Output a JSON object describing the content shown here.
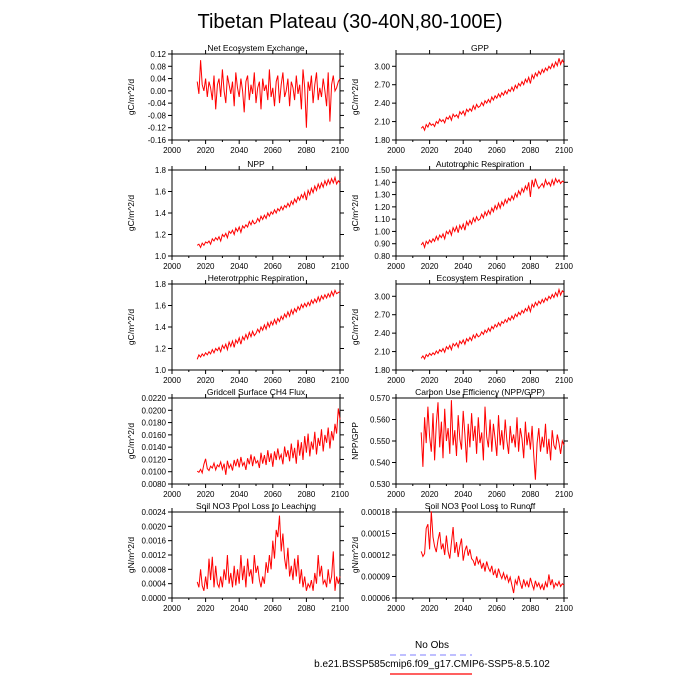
{
  "page_title": "Tibetan Plateau (30-40N,80-100E)",
  "legend": {
    "obs_label": "No Obs",
    "obs_color": "#9999ff",
    "model_label": "b.e21.BSSP585cmip6.f09_g17.CMIP6-SSP5-8.5.102",
    "model_color": "#ff0000"
  },
  "chart_data": [
    {
      "type": "line",
      "title": "Net Ecosystem Exchange",
      "ylabel": "gC/m^2/d",
      "xlim": [
        2000,
        2100
      ],
      "ylim": [
        -0.16,
        0.12
      ],
      "xticks": [
        "2000",
        "2020",
        "2040",
        "2060",
        "2080",
        "2100"
      ],
      "yticks": [
        "-0.16",
        "-0.12",
        "-0.08",
        "-0.04",
        "0.00",
        "0.04",
        "0.08",
        "0.12"
      ],
      "x_start": 2015,
      "values": [
        0.03,
        -0.01,
        0.1,
        0.02,
        0.0,
        0.04,
        -0.02,
        0.03,
        0.01,
        -0.03,
        0.05,
        -0.06,
        0.02,
        0.04,
        -0.02,
        0.07,
        0.0,
        -0.04,
        0.05,
        0.02,
        -0.01,
        0.03,
        -0.05,
        0.06,
        0.01,
        -0.02,
        0.04,
        0.0,
        -0.07,
        0.03,
        0.05,
        -0.03,
        0.02,
        -0.01,
        0.06,
        -0.04,
        0.01,
        0.03,
        -0.06,
        0.04,
        0.0,
        0.02,
        -0.03,
        0.07,
        -0.02,
        0.01,
        -0.05,
        0.03,
        0.05,
        -0.04,
        0.02,
        0.06,
        -0.02,
        0.0,
        0.04,
        -0.05,
        0.03,
        0.01,
        -0.03,
        0.05,
        -0.01,
        0.02,
        -0.06,
        0.07,
        0.01,
        -0.12,
        0.03,
        0.0,
        0.05,
        -0.04,
        0.02,
        0.06,
        -0.03,
        0.01,
        -0.02,
        0.04,
        0.0,
        -0.05,
        0.06,
        -0.1,
        0.02,
        0.05,
        0.0,
        0.01,
        0.03,
        0.04
      ]
    },
    {
      "type": "line",
      "title": "GPP",
      "ylabel": "gC/m^2/d",
      "xlim": [
        2000,
        2100
      ],
      "ylim": [
        1.8,
        3.2
      ],
      "xticks": [
        "2000",
        "2020",
        "2040",
        "2060",
        "2080",
        "2100"
      ],
      "yticks": [
        "1.80",
        "2.10",
        "2.40",
        "2.70",
        "3.00"
      ],
      "x_start": 2015,
      "values": [
        1.99,
        2.02,
        1.96,
        2.05,
        2.01,
        2.08,
        2.04,
        2.06,
        2.02,
        2.1,
        2.07,
        2.14,
        2.1,
        2.13,
        2.08,
        2.17,
        2.14,
        2.19,
        2.12,
        2.22,
        2.18,
        2.21,
        2.16,
        2.26,
        2.22,
        2.27,
        2.2,
        2.3,
        2.26,
        2.31,
        2.27,
        2.36,
        2.3,
        2.38,
        2.33,
        2.35,
        2.41,
        2.36,
        2.44,
        2.4,
        2.46,
        2.41,
        2.5,
        2.45,
        2.52,
        2.48,
        2.55,
        2.5,
        2.57,
        2.53,
        2.6,
        2.55,
        2.62,
        2.59,
        2.66,
        2.6,
        2.69,
        2.64,
        2.72,
        2.68,
        2.75,
        2.7,
        2.79,
        2.74,
        2.82,
        2.72,
        2.86,
        2.8,
        2.89,
        2.84,
        2.92,
        2.87,
        2.95,
        2.9,
        2.97,
        2.93,
        3.0,
        2.96,
        3.04,
        2.98,
        3.07,
        3.01,
        3.13,
        3.03,
        3.1,
        3.05
      ]
    },
    {
      "type": "line",
      "title": "NPP",
      "ylabel": "gC/m^2/d",
      "xlim": [
        2000,
        2100
      ],
      "ylim": [
        1.0,
        1.8
      ],
      "xticks": [
        "2000",
        "2020",
        "2040",
        "2060",
        "2080",
        "2100"
      ],
      "yticks": [
        "1.0",
        "1.2",
        "1.4",
        "1.6",
        "1.8"
      ],
      "x_start": 2015,
      "values": [
        1.1,
        1.11,
        1.08,
        1.12,
        1.1,
        1.13,
        1.12,
        1.14,
        1.11,
        1.16,
        1.14,
        1.17,
        1.15,
        1.18,
        1.14,
        1.2,
        1.18,
        1.21,
        1.17,
        1.23,
        1.21,
        1.24,
        1.2,
        1.26,
        1.23,
        1.27,
        1.22,
        1.28,
        1.26,
        1.29,
        1.27,
        1.32,
        1.29,
        1.33,
        1.3,
        1.31,
        1.35,
        1.32,
        1.37,
        1.34,
        1.38,
        1.35,
        1.4,
        1.37,
        1.41,
        1.39,
        1.43,
        1.4,
        1.44,
        1.42,
        1.46,
        1.43,
        1.47,
        1.45,
        1.49,
        1.46,
        1.51,
        1.48,
        1.53,
        1.5,
        1.55,
        1.52,
        1.57,
        1.54,
        1.59,
        1.52,
        1.61,
        1.57,
        1.63,
        1.59,
        1.65,
        1.61,
        1.67,
        1.63,
        1.68,
        1.64,
        1.7,
        1.66,
        1.71,
        1.67,
        1.72,
        1.68,
        1.73,
        1.67,
        1.7,
        1.68
      ]
    },
    {
      "type": "line",
      "title": "Autotrophic Respiration",
      "ylabel": "gC/m^2/d",
      "xlim": [
        2000,
        2100
      ],
      "ylim": [
        0.8,
        1.5
      ],
      "xticks": [
        "2000",
        "2020",
        "2040",
        "2060",
        "2080",
        "2100"
      ],
      "yticks": [
        "0.80",
        "0.90",
        "1.00",
        "1.10",
        "1.20",
        "1.30",
        "1.40",
        "1.50"
      ],
      "x_start": 2015,
      "values": [
        0.89,
        0.91,
        0.87,
        0.92,
        0.9,
        0.93,
        0.91,
        0.94,
        0.92,
        0.96,
        0.93,
        0.97,
        0.95,
        0.98,
        0.94,
        1.0,
        0.98,
        1.01,
        0.97,
        1.03,
        1.0,
        1.04,
        0.99,
        1.05,
        1.02,
        1.06,
        1.01,
        1.08,
        1.05,
        1.09,
        1.06,
        1.11,
        1.08,
        1.12,
        1.09,
        1.1,
        1.14,
        1.11,
        1.16,
        1.13,
        1.17,
        1.14,
        1.19,
        1.16,
        1.21,
        1.18,
        1.23,
        1.19,
        1.24,
        1.21,
        1.26,
        1.23,
        1.27,
        1.25,
        1.29,
        1.26,
        1.31,
        1.28,
        1.33,
        1.3,
        1.35,
        1.32,
        1.37,
        1.34,
        1.4,
        1.28,
        1.42,
        1.36,
        1.43,
        1.38,
        1.35,
        1.37,
        1.39,
        1.36,
        1.42,
        1.38,
        1.4,
        1.37,
        1.42,
        1.38,
        1.43,
        1.4,
        1.42,
        1.39,
        1.41,
        1.4
      ]
    },
    {
      "type": "line",
      "title": "Heterotrophic Respiration",
      "ylabel": "gC/m^2/d",
      "xlim": [
        2000,
        2100
      ],
      "ylim": [
        1.0,
        1.8
      ],
      "xticks": [
        "2000",
        "2020",
        "2040",
        "2060",
        "2080",
        "2100"
      ],
      "yticks": [
        "1.0",
        "1.2",
        "1.4",
        "1.6",
        "1.8"
      ],
      "x_start": 2015,
      "values": [
        1.1,
        1.14,
        1.12,
        1.15,
        1.13,
        1.16,
        1.14,
        1.17,
        1.15,
        1.19,
        1.16,
        1.2,
        1.18,
        1.21,
        1.17,
        1.23,
        1.2,
        1.24,
        1.19,
        1.26,
        1.22,
        1.27,
        1.21,
        1.28,
        1.25,
        1.3,
        1.24,
        1.31,
        1.28,
        1.33,
        1.29,
        1.35,
        1.31,
        1.36,
        1.32,
        1.34,
        1.38,
        1.35,
        1.4,
        1.37,
        1.42,
        1.38,
        1.44,
        1.4,
        1.45,
        1.42,
        1.47,
        1.43,
        1.48,
        1.45,
        1.5,
        1.47,
        1.52,
        1.49,
        1.54,
        1.5,
        1.56,
        1.52,
        1.57,
        1.54,
        1.59,
        1.56,
        1.61,
        1.58,
        1.62,
        1.59,
        1.63,
        1.6,
        1.65,
        1.62,
        1.66,
        1.63,
        1.68,
        1.64,
        1.69,
        1.66,
        1.7,
        1.67,
        1.71,
        1.68,
        1.73,
        1.69,
        1.74,
        1.71,
        1.72,
        1.73
      ]
    },
    {
      "type": "line",
      "title": "Ecosystem Respiration",
      "ylabel": "gC/m^2/d",
      "xlim": [
        2000,
        2100
      ],
      "ylim": [
        1.8,
        3.2
      ],
      "xticks": [
        "2000",
        "2020",
        "2040",
        "2060",
        "2080",
        "2100"
      ],
      "yticks": [
        "1.80",
        "2.10",
        "2.40",
        "2.70",
        "3.00"
      ],
      "x_start": 2015,
      "values": [
        1.99,
        2.03,
        1.98,
        2.05,
        2.02,
        2.07,
        2.04,
        2.08,
        2.05,
        2.11,
        2.07,
        2.13,
        2.1,
        2.15,
        2.09,
        2.18,
        2.14,
        2.2,
        2.13,
        2.23,
        2.19,
        2.24,
        2.17,
        2.27,
        2.23,
        2.29,
        2.22,
        2.31,
        2.27,
        2.33,
        2.28,
        2.37,
        2.32,
        2.39,
        2.34,
        2.36,
        2.42,
        2.38,
        2.45,
        2.41,
        2.48,
        2.43,
        2.51,
        2.47,
        2.54,
        2.5,
        2.57,
        2.52,
        2.59,
        2.56,
        2.62,
        2.58,
        2.65,
        2.61,
        2.68,
        2.63,
        2.71,
        2.67,
        2.74,
        2.7,
        2.77,
        2.73,
        2.8,
        2.76,
        2.84,
        2.75,
        2.87,
        2.82,
        2.9,
        2.85,
        2.92,
        2.88,
        2.95,
        2.9,
        2.97,
        2.93,
        3.0,
        2.96,
        3.03,
        2.98,
        3.06,
        3.0,
        3.11,
        3.02,
        3.09,
        3.06
      ]
    },
    {
      "type": "line",
      "title": "Gridcell Surface CH4 Flux",
      "ylabel": "gC/m^2/d",
      "xlim": [
        2000,
        2100
      ],
      "ylim": [
        0.008,
        0.022
      ],
      "xticks": [
        "2000",
        "2020",
        "2040",
        "2060",
        "2080",
        "2100"
      ],
      "yticks": [
        "0.0080",
        "0.0100",
        "0.0120",
        "0.0140",
        "0.0160",
        "0.0180",
        "0.0200",
        "0.0220"
      ],
      "x_start": 2015,
      "values": [
        0.0101,
        0.0099,
        0.0104,
        0.0098,
        0.0112,
        0.0121,
        0.0105,
        0.0102,
        0.0109,
        0.0106,
        0.0114,
        0.0103,
        0.0111,
        0.0108,
        0.0116,
        0.0104,
        0.0113,
        0.0095,
        0.0118,
        0.0106,
        0.0112,
        0.0102,
        0.0119,
        0.0109,
        0.0121,
        0.0107,
        0.0124,
        0.011,
        0.0115,
        0.0103,
        0.0122,
        0.0112,
        0.0128,
        0.0109,
        0.0125,
        0.0114,
        0.0118,
        0.0106,
        0.0131,
        0.0113,
        0.0127,
        0.0111,
        0.0135,
        0.0116,
        0.013,
        0.0108,
        0.0133,
        0.0119,
        0.0138,
        0.0121,
        0.0128,
        0.0112,
        0.0141,
        0.0124,
        0.0135,
        0.0117,
        0.0146,
        0.0122,
        0.0139,
        0.0113,
        0.0152,
        0.0126,
        0.0148,
        0.0119,
        0.0158,
        0.0131,
        0.0162,
        0.0125,
        0.0149,
        0.0136,
        0.0165,
        0.0128,
        0.0155,
        0.0142,
        0.0169,
        0.0133,
        0.016,
        0.0147,
        0.0172,
        0.0138,
        0.0166,
        0.0151,
        0.0178,
        0.0162,
        0.0203,
        0.0185
      ]
    },
    {
      "type": "line",
      "title": "Carbon Use Efficiency (NPP/GPP)",
      "ylabel": "NPP/GPP",
      "xlim": [
        2000,
        2100
      ],
      "ylim": [
        0.53,
        0.57
      ],
      "xticks": [
        "2000",
        "2020",
        "2040",
        "2060",
        "2080",
        "2100"
      ],
      "yticks": [
        "0.530",
        "0.540",
        "0.550",
        "0.560",
        "0.570"
      ],
      "x_start": 2015,
      "values": [
        0.554,
        0.538,
        0.561,
        0.549,
        0.566,
        0.552,
        0.545,
        0.563,
        0.541,
        0.558,
        0.568,
        0.547,
        0.559,
        0.542,
        0.565,
        0.55,
        0.556,
        0.544,
        0.569,
        0.548,
        0.555,
        0.543,
        0.562,
        0.551,
        0.546,
        0.564,
        0.553,
        0.54,
        0.558,
        0.547,
        0.563,
        0.55,
        0.557,
        0.544,
        0.561,
        0.549,
        0.554,
        0.541,
        0.566,
        0.552,
        0.547,
        0.56,
        0.545,
        0.558,
        0.551,
        0.543,
        0.562,
        0.548,
        0.555,
        0.546,
        0.56,
        0.55,
        0.544,
        0.557,
        0.549,
        0.553,
        0.547,
        0.561,
        0.545,
        0.556,
        0.551,
        0.542,
        0.559,
        0.548,
        0.554,
        0.546,
        0.557,
        0.543,
        0.532,
        0.549,
        0.556,
        0.545,
        0.552,
        0.547,
        0.558,
        0.544,
        0.551,
        0.541,
        0.555,
        0.548,
        0.546,
        0.553,
        0.549,
        0.544,
        0.55,
        0.548
      ]
    },
    {
      "type": "line",
      "title": "Soil NO3 Pool Loss to Leaching",
      "ylabel": "gN/m^2/d",
      "xlim": [
        2000,
        2100
      ],
      "ylim": [
        0.0,
        0.0024
      ],
      "xticks": [
        "2000",
        "2020",
        "2040",
        "2060",
        "2080",
        "2100"
      ],
      "yticks": [
        "0.0000",
        "0.0004",
        "0.0008",
        "0.0012",
        "0.0016",
        "0.0020",
        "0.0024"
      ],
      "x_start": 2015,
      "values": [
        0.00045,
        0.0003,
        0.0008,
        0.00035,
        0.0002,
        0.0006,
        0.00025,
        0.0011,
        0.0005,
        0.00115,
        0.0003,
        0.0009,
        0.0004,
        0.0003,
        0.0006,
        0.0003,
        0.0008,
        0.0005,
        0.0012,
        0.0004,
        0.0007,
        0.0003,
        0.0009,
        0.00035,
        0.0008,
        0.0004,
        0.0012,
        0.0005,
        0.0009,
        0.0003,
        0.0011,
        0.0006,
        0.0008,
        0.0004,
        0.0012,
        0.0007,
        0.0009,
        0.0005,
        0.0003,
        0.0006,
        0.0004,
        0.001,
        0.0007,
        0.0012,
        0.0008,
        0.0016,
        0.0011,
        0.0019,
        0.0017,
        0.0023,
        0.0013,
        0.0018,
        0.0011,
        0.0008,
        0.0014,
        0.0006,
        0.0009,
        0.0005,
        0.0011,
        0.0006,
        0.0012,
        0.0004,
        0.0008,
        0.0003,
        0.0006,
        0.0002,
        0.0004,
        0.0003,
        0.0005,
        0.0002,
        0.0007,
        0.0004,
        0.0012,
        0.0006,
        0.0009,
        0.0004,
        0.0005,
        0.0003,
        0.0008,
        0.0004,
        0.0006,
        0.0013,
        0.0002,
        0.0006,
        0.0004,
        0.0006
      ]
    },
    {
      "type": "line",
      "title": "Soil NO3 Pool Loss to Runoff",
      "ylabel": "gN/m^2/d",
      "xlim": [
        2000,
        2100
      ],
      "ylim": [
        6e-05,
        0.00018
      ],
      "xticks": [
        "2000",
        "2020",
        "2040",
        "2060",
        "2080",
        "2100"
      ],
      "yticks": [
        "0.00006",
        "0.00009",
        "0.00012",
        "0.00015",
        "0.00018"
      ],
      "x_start": 2015,
      "values": [
        0.000125,
        0.000118,
        0.000122,
        0.000157,
        0.000163,
        0.000128,
        0.000181,
        0.000145,
        0.000132,
        0.000124,
        0.000141,
        0.000152,
        0.000128,
        0.000136,
        0.00012,
        0.000147,
        0.000125,
        0.000115,
        0.000137,
        0.000159,
        0.000123,
        0.000138,
        0.000117,
        0.000132,
        0.000143,
        0.000112,
        0.000126,
        0.000133,
        0.000119,
        0.000128,
        0.000115,
        0.000112,
        0.000105,
        0.000118,
        0.000108,
        0.000113,
        0.000101,
        0.000109,
        9.7e-05,
        0.000111,
        0.000102,
        9.7e-05,
        0.000105,
        9.2e-05,
        9.9e-05,
        8.8e-05,
        0.000101,
        9.3e-05,
        8.7e-05,
        9.5e-05,
        8.6e-05,
        9.2e-05,
        8.2e-05,
        8.9e-05,
        7.8e-05,
        6.7e-05,
        8.5e-05,
        7.9e-05,
        9.1e-05,
        8.1e-05,
        7.3e-05,
        8.6e-05,
        7.7e-05,
        8.3e-05,
        7.5e-05,
        8.8e-05,
        7.9e-05,
        7.2e-05,
        8.4e-05,
        7.6e-05,
        8.1e-05,
        7.3e-05,
        7.9e-05,
        7.1e-05,
        8.2e-05,
        7.5e-05,
        9.3e-05,
        7.8e-05,
        8.6e-05,
        7.4e-05,
        8.1e-05,
        7.7e-05,
        8.3e-05,
        7.6e-05,
        8e-05,
        7.8e-05
      ]
    }
  ]
}
